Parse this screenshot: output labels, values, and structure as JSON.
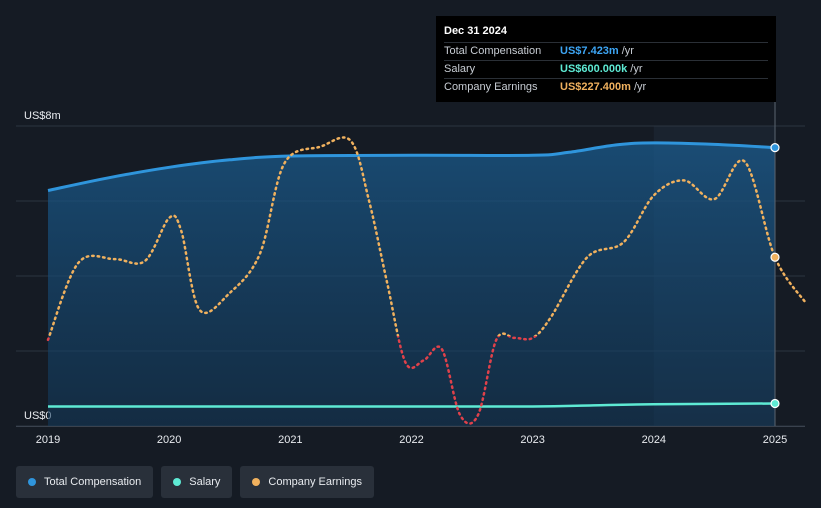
{
  "chart_data": {
    "type": "line",
    "y_max_label": "US$8m",
    "y_min_label": "US$0",
    "ylim": [
      0,
      8
    ],
    "xlim": [
      2019,
      2025.25
    ],
    "x_ticks": [
      "2019",
      "2020",
      "2021",
      "2022",
      "2023",
      "2024",
      "2025"
    ],
    "forecast_start": 2024.0,
    "series": [
      {
        "name": "Total Compensation",
        "color": "#2f95dc",
        "style": "area",
        "x": [
          2019,
          2019.5,
          2020,
          2020.5,
          2021,
          2022,
          2023,
          2023.3,
          2023.7,
          2024,
          2024.5,
          2025
        ],
        "values": [
          6.28,
          6.62,
          6.9,
          7.1,
          7.2,
          7.22,
          7.22,
          7.3,
          7.5,
          7.55,
          7.51,
          7.423
        ]
      },
      {
        "name": "Salary",
        "color": "#5eead4",
        "style": "line",
        "x": [
          2019,
          2020,
          2021,
          2022,
          2023,
          2023.5,
          2024,
          2025
        ],
        "values": [
          0.52,
          0.52,
          0.52,
          0.52,
          0.52,
          0.55,
          0.58,
          0.6
        ]
      },
      {
        "name": "Company Earnings",
        "color": "#f0b15e",
        "negative_color": "#e0414a",
        "style": "dotted",
        "x": [
          2019,
          2019.25,
          2019.55,
          2019.8,
          2020,
          2020.1,
          2020.25,
          2020.5,
          2020.75,
          2020.95,
          2021.25,
          2021.5,
          2021.65,
          2021.8,
          2021.95,
          2022.1,
          2022.25,
          2022.4,
          2022.55,
          2022.7,
          2022.85,
          2023.0,
          2023.15,
          2023.45,
          2023.75,
          2024.0,
          2024.25,
          2024.5,
          2024.75,
          2025.0,
          2025.25
        ],
        "values": [
          2.3,
          4.35,
          4.45,
          4.4,
          5.55,
          5.2,
          3.1,
          3.55,
          4.6,
          7.0,
          7.45,
          7.6,
          6.0,
          3.8,
          1.7,
          1.75,
          2.05,
          0.3,
          0.3,
          2.3,
          2.35,
          2.35,
          2.9,
          4.5,
          4.9,
          6.15,
          6.55,
          6.05,
          7.05,
          4.5,
          3.3
        ]
      }
    ]
  },
  "tooltip": {
    "date": "Dec 31 2024",
    "rows": [
      {
        "label": "Total Compensation",
        "value": "US$7.423m",
        "unit": "/yr",
        "color": "#3da5f4"
      },
      {
        "label": "Salary",
        "value": "US$600.000k",
        "unit": "/yr",
        "color": "#5eead4"
      },
      {
        "label": "Company Earnings",
        "value": "US$227.400m",
        "unit": "/yr",
        "color": "#f0b15e"
      }
    ]
  },
  "legend": [
    {
      "label": "Total Compensation",
      "color": "#2f95dc"
    },
    {
      "label": "Salary",
      "color": "#5eead4"
    },
    {
      "label": "Company Earnings",
      "color": "#f0b15e"
    }
  ]
}
